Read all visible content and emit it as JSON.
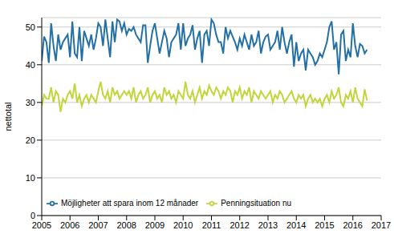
{
  "chart_data": {
    "type": "line",
    "y_label": "nettotal",
    "x": [
      2005.0,
      2005.083,
      2005.167,
      2005.25,
      2005.333,
      2005.417,
      2005.5,
      2005.583,
      2005.667,
      2005.75,
      2005.833,
      2005.917,
      2006.0,
      2006.083,
      2006.167,
      2006.25,
      2006.333,
      2006.417,
      2006.5,
      2006.583,
      2006.667,
      2006.75,
      2006.833,
      2006.917,
      2007.0,
      2007.083,
      2007.167,
      2007.25,
      2007.333,
      2007.417,
      2007.5,
      2007.583,
      2007.667,
      2007.75,
      2007.833,
      2007.917,
      2008.0,
      2008.083,
      2008.167,
      2008.25,
      2008.333,
      2008.417,
      2008.5,
      2008.583,
      2008.667,
      2008.75,
      2008.833,
      2008.917,
      2009.0,
      2009.083,
      2009.167,
      2009.25,
      2009.333,
      2009.417,
      2009.5,
      2009.583,
      2009.667,
      2009.75,
      2009.833,
      2009.917,
      2010.0,
      2010.083,
      2010.167,
      2010.25,
      2010.333,
      2010.417,
      2010.5,
      2010.583,
      2010.667,
      2010.75,
      2010.833,
      2010.917,
      2011.0,
      2011.083,
      2011.167,
      2011.25,
      2011.333,
      2011.417,
      2011.5,
      2011.583,
      2011.667,
      2011.75,
      2011.833,
      2011.917,
      2012.0,
      2012.083,
      2012.167,
      2012.25,
      2012.333,
      2012.417,
      2012.5,
      2012.583,
      2012.667,
      2012.75,
      2012.833,
      2012.917,
      2013.0,
      2013.083,
      2013.167,
      2013.25,
      2013.333,
      2013.417,
      2013.5,
      2013.583,
      2013.667,
      2013.75,
      2013.833,
      2013.917,
      2014.0,
      2014.083,
      2014.167,
      2014.25,
      2014.333,
      2014.417,
      2014.5,
      2014.583,
      2014.667,
      2014.75,
      2014.833,
      2014.917,
      2015.0,
      2015.083,
      2015.167,
      2015.25,
      2015.333,
      2015.417,
      2015.5,
      2015.583,
      2015.667,
      2015.75,
      2015.833,
      2015.917,
      2016.0,
      2016.083,
      2016.167,
      2016.25,
      2016.333,
      2016.417,
      2016.5
    ],
    "series": [
      {
        "name": "Möjligheter att spara inom 12 månader",
        "color": "#2370a6",
        "values": [
          41,
          47.5,
          46,
          40.5,
          51,
          45,
          41,
          48,
          44,
          46,
          47,
          48,
          42,
          51.5,
          43,
          42,
          50,
          41,
          49,
          47,
          45,
          48,
          44,
          47,
          51,
          50,
          45,
          52,
          47,
          42,
          51.5,
          46,
          52,
          51.5,
          49,
          51,
          48,
          49.5,
          49,
          50,
          48,
          47,
          46,
          50.5,
          50.5,
          40.5,
          45,
          49,
          51,
          47,
          43,
          46,
          49,
          47,
          42,
          46,
          47,
          48,
          51,
          44,
          51,
          45,
          47,
          48,
          50.5,
          44,
          47,
          49,
          40.5,
          48,
          49,
          45,
          52,
          51,
          48,
          46,
          46,
          43,
          50,
          47,
          49,
          47.5,
          46,
          44,
          47,
          45,
          48,
          46,
          44,
          48,
          45,
          46,
          49,
          43,
          46,
          47.5,
          48,
          44,
          45,
          46,
          49,
          44,
          50,
          46,
          43,
          46,
          48,
          39.5,
          46,
          41,
          43,
          44,
          38.5,
          44,
          43,
          42,
          40,
          41,
          43,
          42,
          44,
          46,
          50,
          51.5,
          44,
          46,
          37.5,
          48,
          49,
          41,
          44,
          42,
          51,
          45,
          42,
          45.5,
          45,
          43,
          44
        ]
      },
      {
        "name": "Penningsituation nu",
        "color": "#c2d53c",
        "values": [
          29,
          32,
          31,
          31,
          34,
          30,
          33,
          32,
          27.5,
          31,
          30,
          32,
          33,
          31,
          35,
          30,
          32,
          29,
          31,
          32,
          30,
          32,
          31,
          30,
          33,
          35.5,
          32,
          31,
          33,
          30,
          34,
          32,
          33,
          31,
          32,
          33,
          32,
          33,
          31,
          34,
          30,
          32,
          33,
          31,
          32,
          34,
          30,
          32,
          33,
          31,
          32,
          30,
          34,
          32,
          33,
          31,
          32,
          30,
          33,
          32,
          31,
          35.5,
          32,
          31,
          33,
          30,
          32,
          34,
          31,
          33,
          32,
          34.5,
          33,
          32,
          34,
          33,
          31,
          33,
          32,
          34,
          33,
          30,
          33,
          32,
          34,
          31,
          33,
          32,
          34,
          30,
          33,
          32,
          31,
          33,
          32,
          31,
          32,
          33,
          30,
          32,
          31,
          33,
          32,
          30,
          31,
          32,
          33,
          31,
          30,
          32,
          31,
          32,
          29,
          31,
          32,
          30,
          31,
          30,
          31,
          29,
          31,
          32,
          30,
          33,
          31,
          32,
          34,
          30,
          29,
          32,
          31,
          33,
          30,
          34,
          31,
          30,
          29,
          33.5,
          30.5
        ]
      }
    ],
    "xlim": [
      2005,
      2017
    ],
    "xticks": [
      2005,
      2006,
      2007,
      2008,
      2009,
      2010,
      2011,
      2012,
      2013,
      2014,
      2015,
      2016,
      2017
    ],
    "ylim": [
      0,
      52.5
    ],
    "yticks": [
      0,
      10,
      20,
      30,
      40,
      50
    ],
    "grid": true,
    "legend": "lower left"
  }
}
